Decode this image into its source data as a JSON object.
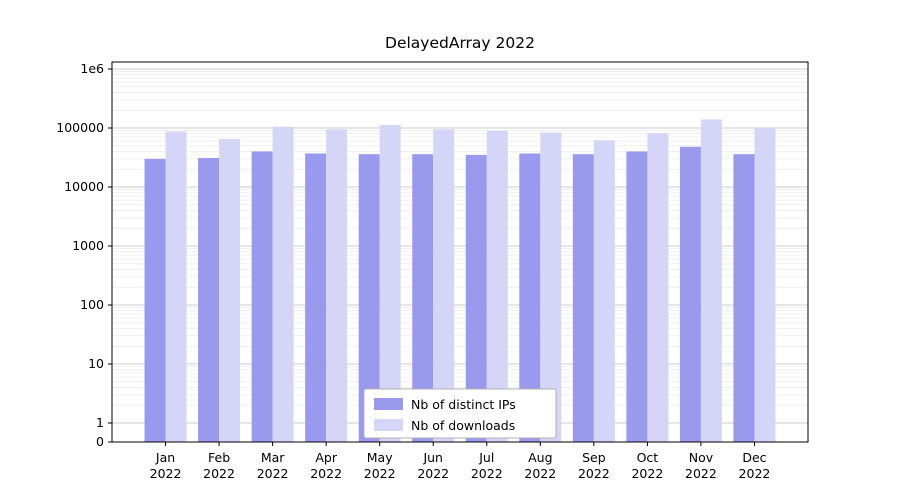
{
  "title": "DelayedArray 2022",
  "chart_data": {
    "type": "bar",
    "title": "DelayedArray 2022",
    "yscale": "symlog",
    "ylim": [
      0,
      1000000
    ],
    "grid": true,
    "legend_position": "bottom-center",
    "ytick_values": [
      0,
      1,
      10,
      100,
      1000,
      10000,
      100000,
      1000000
    ],
    "ytick_labels": [
      "0",
      "1",
      "10",
      "100",
      "1000",
      "10000",
      "100000",
      "1e6"
    ],
    "categories": [
      "Jan",
      "Feb",
      "Mar",
      "Apr",
      "May",
      "Jun",
      "Jul",
      "Aug",
      "Sep",
      "Oct",
      "Nov",
      "Dec"
    ],
    "category_year": "2022",
    "series": [
      {
        "name": "Nb of distinct IPs",
        "color": "#9999ee",
        "values": [
          30000,
          31000,
          40000,
          37000,
          36000,
          36000,
          35000,
          37000,
          36000,
          40000,
          48000,
          36000
        ]
      },
      {
        "name": "Nb of downloads",
        "color": "#d5d5f8",
        "values": [
          87000,
          65000,
          105000,
          95000,
          112000,
          95000,
          90000,
          84000,
          62000,
          82000,
          140000,
          100000
        ]
      }
    ]
  }
}
